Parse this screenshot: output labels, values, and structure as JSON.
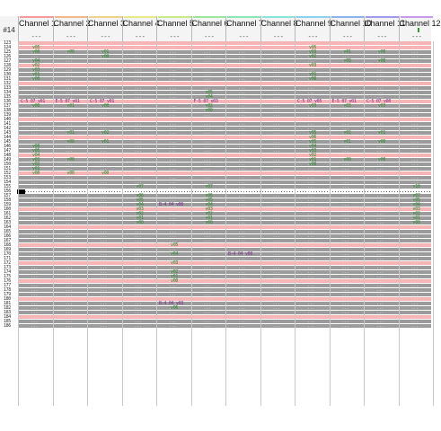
{
  "tracker": {
    "pattern_label": "#14",
    "empty_cell_text": "...",
    "channel_dots": "---",
    "row_start": 123,
    "row_end": 186,
    "current_row": 156,
    "colors": {
      "row_bg": "#9b9b9b",
      "row_highlight": "#f6b4b4",
      "row_beat": "#f7c8c8",
      "cursor_row": "#ffffff",
      "note": "#7b2a8c",
      "instrument": "#3a3aa8",
      "volume": "#2d8a2d",
      "dots": "#d9d9d9"
    },
    "channels": [
      {
        "name": "Channel 1",
        "color": "#f59a9a"
      },
      {
        "name": "Channel 2",
        "color": "#f5b58a"
      },
      {
        "name": "Channel 3",
        "color": "#f0d38a"
      },
      {
        "name": "Channel 4",
        "color": "#e8ea8a"
      },
      {
        "name": "Channel 5",
        "color": "#c9ea8a"
      },
      {
        "name": "Channel 6",
        "color": "#9ee69a"
      },
      {
        "name": "Channel 7",
        "color": "#8ae6b4"
      },
      {
        "name": "Channel 8",
        "color": "#8ae6dc"
      },
      {
        "name": "Channel 9",
        "color": "#8ad2ee"
      },
      {
        "name": "Channel 10",
        "color": "#8ab4ee"
      },
      {
        "name": "Channel 11",
        "color": "#a09aee"
      },
      {
        "name": "Channel 12",
        "color": "#c89aee"
      }
    ],
    "highlight_rows": [
      123,
      124,
      128,
      132,
      136,
      140,
      144,
      148,
      152,
      156,
      160,
      164,
      168,
      172,
      176,
      180,
      184
    ],
    "events": [
      {
        "row": 124,
        "ch": 0,
        "text": "v05",
        "kind": "volume"
      },
      {
        "row": 125,
        "ch": 0,
        "text": "v00",
        "kind": "volume"
      },
      {
        "row": 127,
        "ch": 0,
        "text": "v04",
        "kind": "volume"
      },
      {
        "row": 128,
        "ch": 0,
        "text": "v02",
        "kind": "volume"
      },
      {
        "row": 129,
        "ch": 0,
        "text": "v03",
        "kind": "volume"
      },
      {
        "row": 130,
        "ch": 0,
        "text": "v01",
        "kind": "volume"
      },
      {
        "row": 131,
        "ch": 0,
        "text": "v00",
        "kind": "volume"
      },
      {
        "row": 136,
        "ch": 0,
        "text": "C-5 07 v01",
        "kind": "note"
      },
      {
        "row": 137,
        "ch": 0,
        "text": "v00",
        "kind": "volume"
      },
      {
        "row": 125,
        "ch": 1,
        "text": "v00",
        "kind": "volume"
      },
      {
        "row": 136,
        "ch": 1,
        "text": "E-5 07 v01",
        "kind": "note"
      },
      {
        "row": 137,
        "ch": 1,
        "text": "v01",
        "kind": "volume"
      },
      {
        "row": 125,
        "ch": 2,
        "text": "v01",
        "kind": "volume"
      },
      {
        "row": 126,
        "ch": 2,
        "text": "v00",
        "kind": "volume"
      },
      {
        "row": 136,
        "ch": 2,
        "text": "C-5 07 v01",
        "kind": "note"
      },
      {
        "row": 137,
        "ch": 2,
        "text": "v00",
        "kind": "volume"
      },
      {
        "row": 134,
        "ch": 5,
        "text": "v05",
        "kind": "volume"
      },
      {
        "row": 135,
        "ch": 5,
        "text": "v04",
        "kind": "volume"
      },
      {
        "row": 136,
        "ch": 5,
        "text": "F-5 07 v03",
        "kind": "note"
      },
      {
        "row": 137,
        "ch": 5,
        "text": "v02",
        "kind": "volume"
      },
      {
        "row": 138,
        "ch": 5,
        "text": "v00",
        "kind": "volume"
      },
      {
        "row": 124,
        "ch": 8,
        "text": "v05",
        "kind": "volume"
      },
      {
        "row": 125,
        "ch": 8,
        "text": "v03",
        "kind": "volume"
      },
      {
        "row": 126,
        "ch": 8,
        "text": "v02",
        "kind": "volume"
      },
      {
        "row": 128,
        "ch": 8,
        "text": "v03",
        "kind": "volume"
      },
      {
        "row": 130,
        "ch": 8,
        "text": "v01",
        "kind": "volume"
      },
      {
        "row": 131,
        "ch": 8,
        "text": "v00",
        "kind": "volume"
      },
      {
        "row": 136,
        "ch": 8,
        "text": "C-5 07 v05",
        "kind": "note"
      },
      {
        "row": 137,
        "ch": 8,
        "text": "v03",
        "kind": "volume"
      },
      {
        "row": 125,
        "ch": 9,
        "text": "v01",
        "kind": "volume"
      },
      {
        "row": 127,
        "ch": 9,
        "text": "v00",
        "kind": "volume"
      },
      {
        "row": 136,
        "ch": 9,
        "text": "E-5 07 v01",
        "kind": "note"
      },
      {
        "row": 137,
        "ch": 9,
        "text": "v03",
        "kind": "volume"
      },
      {
        "row": 125,
        "ch": 10,
        "text": "v00",
        "kind": "volume"
      },
      {
        "row": 127,
        "ch": 10,
        "text": "v00",
        "kind": "volume"
      },
      {
        "row": 136,
        "ch": 10,
        "text": "C-5 07 v00",
        "kind": "note"
      },
      {
        "row": 137,
        "ch": 10,
        "text": "v03",
        "kind": "volume"
      },
      {
        "row": 143,
        "ch": 1,
        "text": "v01",
        "kind": "volume"
      },
      {
        "row": 145,
        "ch": 1,
        "text": "v00",
        "kind": "volume"
      },
      {
        "row": 146,
        "ch": 0,
        "text": "v08",
        "kind": "volume"
      },
      {
        "row": 147,
        "ch": 0,
        "text": "v05",
        "kind": "volume"
      },
      {
        "row": 148,
        "ch": 0,
        "text": "v04",
        "kind": "volume"
      },
      {
        "row": 149,
        "ch": 0,
        "text": "v03",
        "kind": "volume"
      },
      {
        "row": 150,
        "ch": 0,
        "text": "v02",
        "kind": "volume"
      },
      {
        "row": 151,
        "ch": 0,
        "text": "v01",
        "kind": "volume"
      },
      {
        "row": 152,
        "ch": 0,
        "text": "v00",
        "kind": "volume"
      },
      {
        "row": 149,
        "ch": 1,
        "text": "v00",
        "kind": "volume"
      },
      {
        "row": 143,
        "ch": 2,
        "text": "v02",
        "kind": "volume"
      },
      {
        "row": 145,
        "ch": 2,
        "text": "v01",
        "kind": "volume"
      },
      {
        "row": 152,
        "ch": 1,
        "text": "v00",
        "kind": "volume"
      },
      {
        "row": 152,
        "ch": 2,
        "text": "v00",
        "kind": "volume"
      },
      {
        "row": 155,
        "ch": 3,
        "text": "v07",
        "kind": "volume"
      },
      {
        "row": 155,
        "ch": 5,
        "text": "v07",
        "kind": "volume"
      },
      {
        "row": 143,
        "ch": 8,
        "text": "v05",
        "kind": "volume"
      },
      {
        "row": 144,
        "ch": 8,
        "text": "v06",
        "kind": "volume"
      },
      {
        "row": 145,
        "ch": 8,
        "text": "v05",
        "kind": "volume"
      },
      {
        "row": 146,
        "ch": 8,
        "text": "v04",
        "kind": "volume"
      },
      {
        "row": 147,
        "ch": 8,
        "text": "v03",
        "kind": "volume"
      },
      {
        "row": 148,
        "ch": 8,
        "text": "v02",
        "kind": "volume"
      },
      {
        "row": 149,
        "ch": 8,
        "text": "v01",
        "kind": "volume"
      },
      {
        "row": 150,
        "ch": 8,
        "text": "v00",
        "kind": "volume"
      },
      {
        "row": 143,
        "ch": 9,
        "text": "v02",
        "kind": "volume"
      },
      {
        "row": 145,
        "ch": 9,
        "text": "v01",
        "kind": "volume"
      },
      {
        "row": 149,
        "ch": 9,
        "text": "v00",
        "kind": "volume"
      },
      {
        "row": 143,
        "ch": 10,
        "text": "v01",
        "kind": "volume"
      },
      {
        "row": 145,
        "ch": 10,
        "text": "v00",
        "kind": "volume"
      },
      {
        "row": 149,
        "ch": 10,
        "text": "v00",
        "kind": "volume"
      },
      {
        "row": 155,
        "ch": 11,
        "text": "v10",
        "kind": "volume"
      },
      {
        "row": 157,
        "ch": 3,
        "text": "v06",
        "kind": "volume"
      },
      {
        "row": 158,
        "ch": 3,
        "text": "v05",
        "kind": "volume"
      },
      {
        "row": 159,
        "ch": 3,
        "text": "v04",
        "kind": "volume"
      },
      {
        "row": 160,
        "ch": 3,
        "text": "v03",
        "kind": "volume"
      },
      {
        "row": 161,
        "ch": 3,
        "text": "v02",
        "kind": "volume"
      },
      {
        "row": 162,
        "ch": 3,
        "text": "v01",
        "kind": "volume"
      },
      {
        "row": 163,
        "ch": 3,
        "text": "v00",
        "kind": "volume"
      },
      {
        "row": 159,
        "ch": 4,
        "text": "B-4 04 v06",
        "kind": "note"
      },
      {
        "row": 157,
        "ch": 5,
        "text": "v06",
        "kind": "volume"
      },
      {
        "row": 158,
        "ch": 5,
        "text": "v05",
        "kind": "volume"
      },
      {
        "row": 159,
        "ch": 5,
        "text": "v04",
        "kind": "volume"
      },
      {
        "row": 160,
        "ch": 5,
        "text": "v03",
        "kind": "volume"
      },
      {
        "row": 161,
        "ch": 5,
        "text": "v02",
        "kind": "volume"
      },
      {
        "row": 162,
        "ch": 5,
        "text": "v01",
        "kind": "volume"
      },
      {
        "row": 163,
        "ch": 5,
        "text": "v00",
        "kind": "volume"
      },
      {
        "row": 157,
        "ch": 11,
        "text": "v07",
        "kind": "volume"
      },
      {
        "row": 158,
        "ch": 11,
        "text": "v05",
        "kind": "volume"
      },
      {
        "row": 159,
        "ch": 11,
        "text": "v04",
        "kind": "volume"
      },
      {
        "row": 160,
        "ch": 11,
        "text": "v03",
        "kind": "volume"
      },
      {
        "row": 161,
        "ch": 11,
        "text": "v02",
        "kind": "volume"
      },
      {
        "row": 162,
        "ch": 11,
        "text": "v01",
        "kind": "volume"
      },
      {
        "row": 163,
        "ch": 11,
        "text": "v00",
        "kind": "volume"
      },
      {
        "row": 168,
        "ch": 4,
        "text": "v05",
        "kind": "volume"
      },
      {
        "row": 170,
        "ch": 4,
        "text": "v04",
        "kind": "volume"
      },
      {
        "row": 172,
        "ch": 4,
        "text": "v03",
        "kind": "volume"
      },
      {
        "row": 174,
        "ch": 4,
        "text": "v02",
        "kind": "volume"
      },
      {
        "row": 175,
        "ch": 4,
        "text": "v01",
        "kind": "volume"
      },
      {
        "row": 176,
        "ch": 4,
        "text": "v00",
        "kind": "volume"
      },
      {
        "row": 170,
        "ch": 6,
        "text": "B-4 04 v00",
        "kind": "note"
      },
      {
        "row": 181,
        "ch": 4,
        "text": "B-4 04 v03",
        "kind": "note"
      },
      {
        "row": 182,
        "ch": 4,
        "text": "v06",
        "kind": "volume"
      }
    ]
  }
}
